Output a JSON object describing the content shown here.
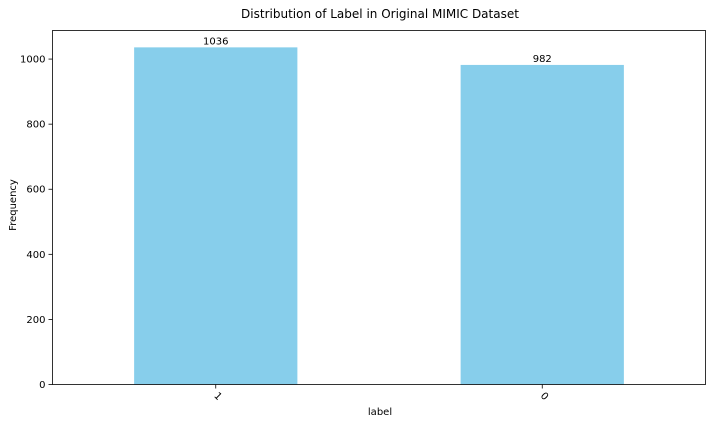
{
  "chart_data": {
    "type": "bar",
    "title": "Distribution of Label in Original MIMIC Dataset",
    "xlabel": "label",
    "ylabel": "Frequency",
    "categories": [
      "1",
      "0"
    ],
    "values": [
      1036,
      982
    ],
    "data_labels": [
      "1036",
      "982"
    ],
    "ylim": [
      0,
      1087.8
    ],
    "yticks": [
      0,
      200,
      400,
      600,
      800,
      1000
    ],
    "ytick_labels": [
      "0",
      "200",
      "400",
      "600",
      "800",
      "1000"
    ],
    "xtick_rotation": 45,
    "grid": false,
    "legend": "none",
    "bar_color": "#87CEEB"
  }
}
